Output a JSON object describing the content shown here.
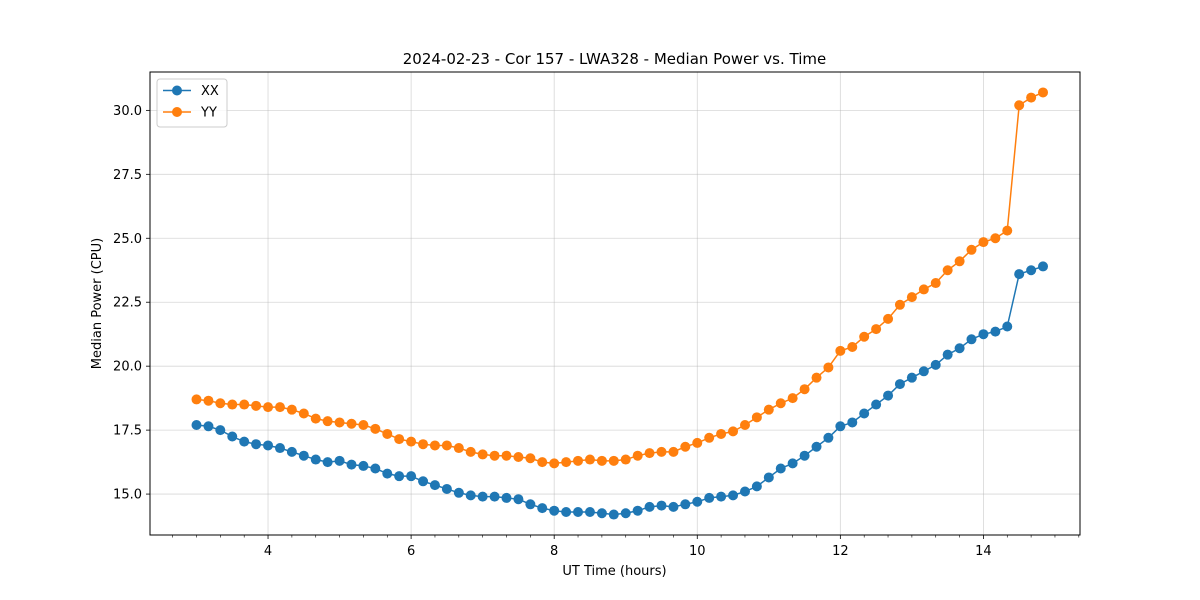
{
  "chart_data": {
    "type": "line",
    "title": "2024-02-23 - Cor 157 - LWA328 - Median Power vs. Time",
    "xlabel": "UT Time (hours)",
    "ylabel": "Median Power (CPU)",
    "xlim": [
      2.35,
      15.35
    ],
    "ylim": [
      13.4,
      31.5
    ],
    "xticks": [
      4,
      6,
      8,
      10,
      12,
      14
    ],
    "xtick_labels": [
      "4",
      "6",
      "8",
      "10",
      "12",
      "14"
    ],
    "xminor_step": 0.333333,
    "yticks": [
      15.0,
      17.5,
      20.0,
      22.5,
      25.0,
      27.5,
      30.0
    ],
    "ytick_labels": [
      "15.0",
      "17.5",
      "20.0",
      "22.5",
      "25.0",
      "27.5",
      "30.0"
    ],
    "grid": true,
    "legend_position": "top-left",
    "x": [
      3.0,
      3.167,
      3.333,
      3.5,
      3.667,
      3.833,
      4.0,
      4.167,
      4.333,
      4.5,
      4.667,
      4.833,
      5.0,
      5.167,
      5.333,
      5.5,
      5.667,
      5.833,
      6.0,
      6.167,
      6.333,
      6.5,
      6.667,
      6.833,
      7.0,
      7.167,
      7.333,
      7.5,
      7.667,
      7.833,
      8.0,
      8.167,
      8.333,
      8.5,
      8.667,
      8.833,
      9.0,
      9.167,
      9.333,
      9.5,
      9.667,
      9.833,
      10.0,
      10.167,
      10.333,
      10.5,
      10.667,
      10.833,
      11.0,
      11.167,
      11.333,
      11.5,
      11.667,
      11.833,
      12.0,
      12.167,
      12.333,
      12.5,
      12.667,
      12.833,
      13.0,
      13.167,
      13.333,
      13.5,
      13.667,
      13.833,
      14.0,
      14.167,
      14.333,
      14.5,
      14.667,
      14.833
    ],
    "series": [
      {
        "name": "XX",
        "color": "#1f77b4",
        "values": [
          17.7,
          17.65,
          17.5,
          17.25,
          17.05,
          16.95,
          16.9,
          16.8,
          16.65,
          16.5,
          16.35,
          16.25,
          16.3,
          16.15,
          16.1,
          16.0,
          15.8,
          15.7,
          15.7,
          15.5,
          15.35,
          15.2,
          15.05,
          14.95,
          14.9,
          14.9,
          14.85,
          14.8,
          14.6,
          14.45,
          14.35,
          14.3,
          14.3,
          14.3,
          14.25,
          14.2,
          14.25,
          14.35,
          14.5,
          14.55,
          14.5,
          14.6,
          14.7,
          14.85,
          14.9,
          14.95,
          15.1,
          15.3,
          15.65,
          16.0,
          16.2,
          16.5,
          16.85,
          17.2,
          17.65,
          17.8,
          18.15,
          18.5,
          18.85,
          19.3,
          19.55,
          19.8,
          20.05,
          20.45,
          20.7,
          21.05,
          21.25,
          21.35,
          21.55,
          23.6,
          23.75,
          23.9
        ]
      },
      {
        "name": "YY",
        "color": "#ff7f0e",
        "values": [
          18.7,
          18.65,
          18.55,
          18.5,
          18.5,
          18.45,
          18.4,
          18.4,
          18.3,
          18.15,
          17.95,
          17.85,
          17.8,
          17.75,
          17.7,
          17.55,
          17.35,
          17.15,
          17.05,
          16.95,
          16.9,
          16.9,
          16.8,
          16.65,
          16.55,
          16.5,
          16.5,
          16.45,
          16.4,
          16.25,
          16.2,
          16.25,
          16.3,
          16.35,
          16.3,
          16.3,
          16.35,
          16.5,
          16.6,
          16.65,
          16.65,
          16.85,
          17.0,
          17.2,
          17.35,
          17.45,
          17.7,
          18.0,
          18.3,
          18.55,
          18.75,
          19.1,
          19.55,
          19.95,
          20.6,
          20.75,
          21.15,
          21.45,
          21.85,
          22.4,
          22.7,
          23.0,
          23.25,
          23.75,
          24.1,
          24.55,
          24.85,
          25.0,
          25.3,
          30.2,
          30.5,
          30.7
        ]
      }
    ]
  }
}
